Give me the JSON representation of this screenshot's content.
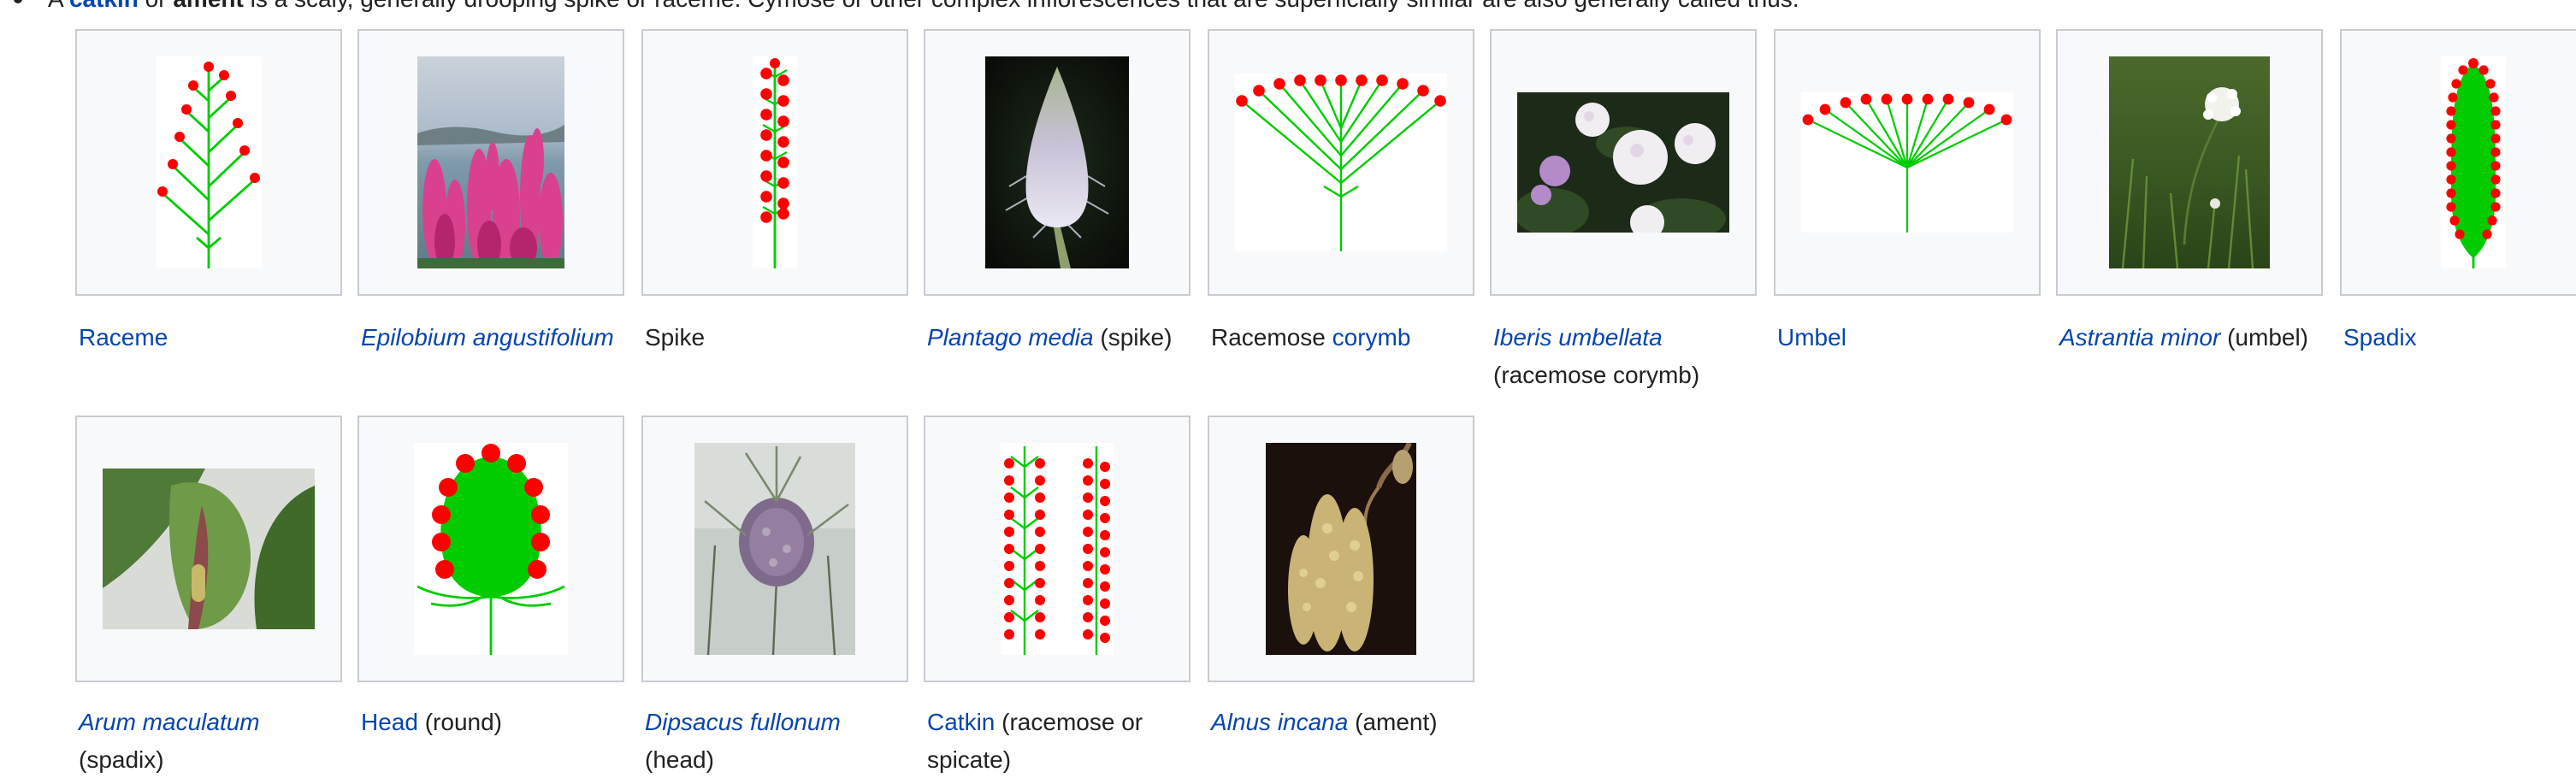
{
  "intro": {
    "prefix": "A ",
    "catkin": "catkin",
    "or": " or ",
    "ament": "ament",
    "rest": " is a scaly, generally drooping spike or raceme. Cymose or other complex inflorescences that are superficially similar are also generally called thus."
  },
  "gallery": [
    {
      "link": "Raceme",
      "link_italic": false,
      "suffix": "",
      "image": "raceme-diagram"
    },
    {
      "link": "Epilobium angustifolium",
      "link_italic": true,
      "suffix": "",
      "image": "epilobium-photo"
    },
    {
      "link": "",
      "link_italic": false,
      "prefix": "Spike",
      "suffix": "",
      "image": "spike-diagram"
    },
    {
      "link": "Plantago media",
      "link_italic": true,
      "suffix": " (spike)",
      "image": "plantago-photo"
    },
    {
      "prefix": "Racemose ",
      "link": "corymb",
      "link_italic": false,
      "suffix": "",
      "image": "corymb-diagram"
    },
    {
      "link": "Iberis umbellata",
      "link_italic": true,
      "suffix": " (racemose corymb)",
      "image": "iberis-photo"
    },
    {
      "link": "Umbel",
      "link_italic": false,
      "suffix": "",
      "image": "umbel-diagram"
    },
    {
      "link": "Astrantia minor",
      "link_italic": true,
      "suffix": " (umbel)",
      "image": "astrantia-photo"
    },
    {
      "link": "Spadix",
      "link_italic": false,
      "suffix": "",
      "image": "spadix-diagram"
    },
    {
      "link": "Arum maculatum",
      "link_italic": true,
      "suffix": " (spadix)",
      "image": "arum-photo"
    },
    {
      "link": "Head",
      "link_italic": false,
      "suffix": " (round)",
      "image": "head-diagram"
    },
    {
      "link": "Dipsacus fullonum",
      "link_italic": true,
      "suffix": " (head)",
      "image": "dipsacus-photo"
    },
    {
      "link": "Catkin",
      "link_italic": false,
      "suffix": " (racemose or spicate)",
      "image": "catkin-diagram"
    },
    {
      "link": "Alnus incana",
      "link_italic": true,
      "suffix": " (ament)",
      "image": "alnus-photo"
    }
  ],
  "colors": {
    "link": "#0645ad",
    "flower": "#ff0000",
    "stem": "#00cc00",
    "tile_bg": "#f8f9fa",
    "tile_border": "#c8ccd1"
  }
}
